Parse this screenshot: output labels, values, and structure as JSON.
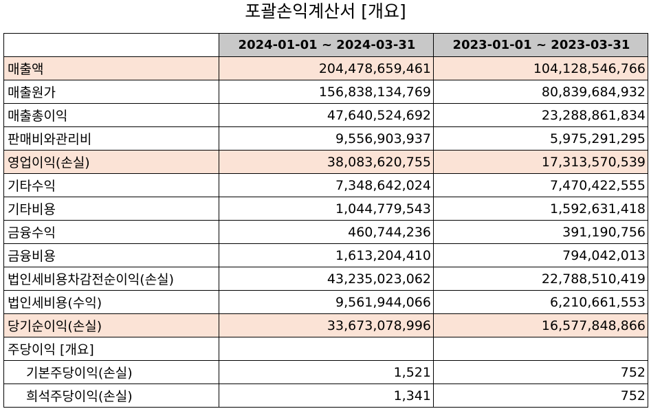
{
  "title": "포괄손익계산서 [개요]",
  "columns": [
    "",
    "2024-01-01 ~ 2024-03-31",
    "2023-01-01 ~ 2023-03-31"
  ],
  "rows": [
    {
      "label": "매출액",
      "v1": "204,478,659,461",
      "v2": "104,128,546,766",
      "highlight": true
    },
    {
      "label": "매출원가",
      "v1": "156,838,134,769",
      "v2": "80,839,684,932",
      "highlight": false
    },
    {
      "label": "매출총이익",
      "v1": "47,640,524,692",
      "v2": "23,288,861,834",
      "highlight": false
    },
    {
      "label": "판매비와관리비",
      "v1": "9,556,903,937",
      "v2": "5,975,291,295",
      "highlight": false
    },
    {
      "label": "영업이익(손실)",
      "v1": "38,083,620,755",
      "v2": "17,313,570,539",
      "highlight": true
    },
    {
      "label": "기타수익",
      "v1": "7,348,642,024",
      "v2": "7,470,422,555",
      "highlight": false
    },
    {
      "label": "기타비용",
      "v1": "1,044,779,543",
      "v2": "1,592,631,418",
      "highlight": false
    },
    {
      "label": "금융수익",
      "v1": "460,744,236",
      "v2": "391,190,756",
      "highlight": false
    },
    {
      "label": "금융비용",
      "v1": "1,613,204,410",
      "v2": "794,042,013",
      "highlight": false
    },
    {
      "label": "법인세비용차감전순이익(손실)",
      "v1": "43,235,023,062",
      "v2": "22,788,510,419",
      "highlight": false
    },
    {
      "label": "법인세비용(수익)",
      "v1": "9,561,944,066",
      "v2": "6,210,661,553",
      "highlight": false
    },
    {
      "label": "당기순이익(손실)",
      "v1": "33,673,078,996",
      "v2": "16,577,848,866",
      "highlight": true
    },
    {
      "label": "주당이익 [개요]",
      "v1": "",
      "v2": "",
      "highlight": false
    },
    {
      "label": "기본주당이익(손실)",
      "v1": "1,521",
      "v2": "752",
      "highlight": false,
      "indent": true
    },
    {
      "label": "희석주당이익(손실)",
      "v1": "1,341",
      "v2": "752",
      "highlight": false,
      "indent": true
    }
  ],
  "colors": {
    "header_bg": "#c8c8c8",
    "highlight_bg": "#fbe3d6"
  }
}
